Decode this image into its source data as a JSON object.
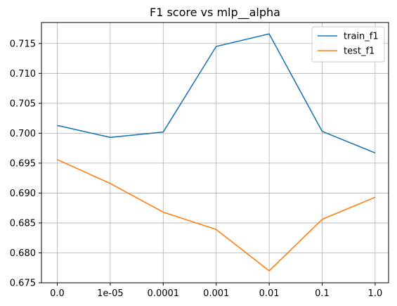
{
  "chart_data": {
    "type": "line",
    "title": "F1 score vs mlp__alpha",
    "xlabel": "",
    "ylabel": "",
    "categories": [
      "0.0",
      "1e-05",
      "0.0001",
      "0.001",
      "0.01",
      "0.1",
      "1.0"
    ],
    "ylim": [
      0.675,
      0.7185
    ],
    "yticks": [
      "0.675",
      "0.680",
      "0.685",
      "0.690",
      "0.695",
      "0.700",
      "0.705",
      "0.710",
      "0.715"
    ],
    "grid": true,
    "legend_position": "top-right",
    "series": [
      {
        "name": "train_f1",
        "color": "#1f77b4",
        "values": [
          0.7013,
          0.6993,
          0.7002,
          0.7145,
          0.7166,
          0.7003,
          0.6967
        ]
      },
      {
        "name": "test_f1",
        "color": "#ff7f0e",
        "values": [
          0.6956,
          0.6916,
          0.6868,
          0.6839,
          0.677,
          0.6856,
          0.6893
        ]
      }
    ]
  }
}
